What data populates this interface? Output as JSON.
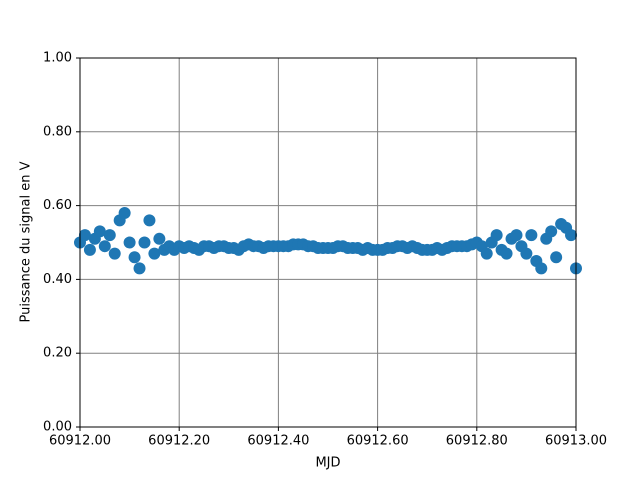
{
  "chart_data": {
    "type": "scatter",
    "x_label": "MJD",
    "y_label": "Puissance du signal en V",
    "color": "#1f77b4",
    "grid": true,
    "xlim": [
      60912,
      60913
    ],
    "xticks": [
      {
        "value": 60912,
        "label": "60912.00"
      },
      {
        "value": 60912.2,
        "label": "60912.20"
      },
      {
        "value": 60912.4,
        "label": "60912.40"
      },
      {
        "value": 60912.6,
        "label": "60912.60"
      },
      {
        "value": 60912.8,
        "label": "60912.80"
      },
      {
        "value": 60913,
        "label": "60913.00"
      }
    ],
    "ylim": [
      0,
      1
    ],
    "yticks": [
      {
        "value": 0,
        "label": "0.00"
      },
      {
        "value": 0.2,
        "label": "0.20"
      },
      {
        "value": 0.4,
        "label": "0.40"
      },
      {
        "value": 0.6,
        "label": "0.60"
      },
      {
        "value": 0.8,
        "label": "0.80"
      },
      {
        "value": 1,
        "label": "1.00"
      }
    ],
    "x": [
      60912,
      60912.01,
      60912.02,
      60912.03,
      60912.04,
      60912.05,
      60912.06,
      60912.07,
      60912.08,
      60912.09,
      60912.1,
      60912.11,
      60912.12,
      60912.13,
      60912.14,
      60912.15,
      60912.16,
      60912.17,
      60912.18,
      60912.19,
      60912.2,
      60912.21,
      60912.22,
      60912.23,
      60912.24,
      60912.25,
      60912.26,
      60912.27,
      60912.28,
      60912.29,
      60912.3,
      60912.31,
      60912.32,
      60912.33,
      60912.34,
      60912.35,
      60912.36,
      60912.37,
      60912.38,
      60912.39,
      60912.4,
      60912.41,
      60912.42,
      60912.43,
      60912.44,
      60912.45,
      60912.46,
      60912.47,
      60912.48,
      60912.49,
      60912.5,
      60912.51,
      60912.52,
      60912.53,
      60912.54,
      60912.55,
      60912.56,
      60912.57,
      60912.58,
      60912.59,
      60912.6,
      60912.61,
      60912.62,
      60912.63,
      60912.64,
      60912.65,
      60912.66,
      60912.67,
      60912.68,
      60912.69,
      60912.7,
      60912.71,
      60912.72,
      60912.73,
      60912.74,
      60912.75,
      60912.76,
      60912.77,
      60912.78,
      60912.79,
      60912.8,
      60912.81,
      60912.82,
      60912.83,
      60912.84,
      60912.85,
      60912.86,
      60912.87,
      60912.88,
      60912.89,
      60912.9,
      60912.91,
      60912.92,
      60912.93,
      60912.94,
      60912.95,
      60912.96,
      60912.97,
      60912.98,
      60912.99,
      60913
    ],
    "values": [
      0.5,
      0.52,
      0.48,
      0.51,
      0.53,
      0.49,
      0.52,
      0.47,
      0.56,
      0.58,
      0.5,
      0.46,
      0.43,
      0.5,
      0.56,
      0.47,
      0.51,
      0.48,
      0.49,
      0.48,
      0.49,
      0.485,
      0.49,
      0.485,
      0.48,
      0.49,
      0.49,
      0.485,
      0.49,
      0.49,
      0.485,
      0.485,
      0.48,
      0.49,
      0.495,
      0.49,
      0.49,
      0.485,
      0.49,
      0.49,
      0.49,
      0.49,
      0.49,
      0.495,
      0.495,
      0.495,
      0.49,
      0.49,
      0.485,
      0.485,
      0.485,
      0.485,
      0.49,
      0.49,
      0.485,
      0.485,
      0.485,
      0.48,
      0.485,
      0.48,
      0.48,
      0.48,
      0.485,
      0.485,
      0.49,
      0.49,
      0.485,
      0.49,
      0.485,
      0.48,
      0.48,
      0.48,
      0.485,
      0.48,
      0.485,
      0.49,
      0.49,
      0.49,
      0.49,
      0.495,
      0.5,
      0.49,
      0.47,
      0.5,
      0.52,
      0.48,
      0.47,
      0.51,
      0.52,
      0.49,
      0.47,
      0.52,
      0.45,
      0.43,
      0.51,
      0.53,
      0.46,
      0.55,
      0.54,
      0.52,
      0.43
    ]
  }
}
